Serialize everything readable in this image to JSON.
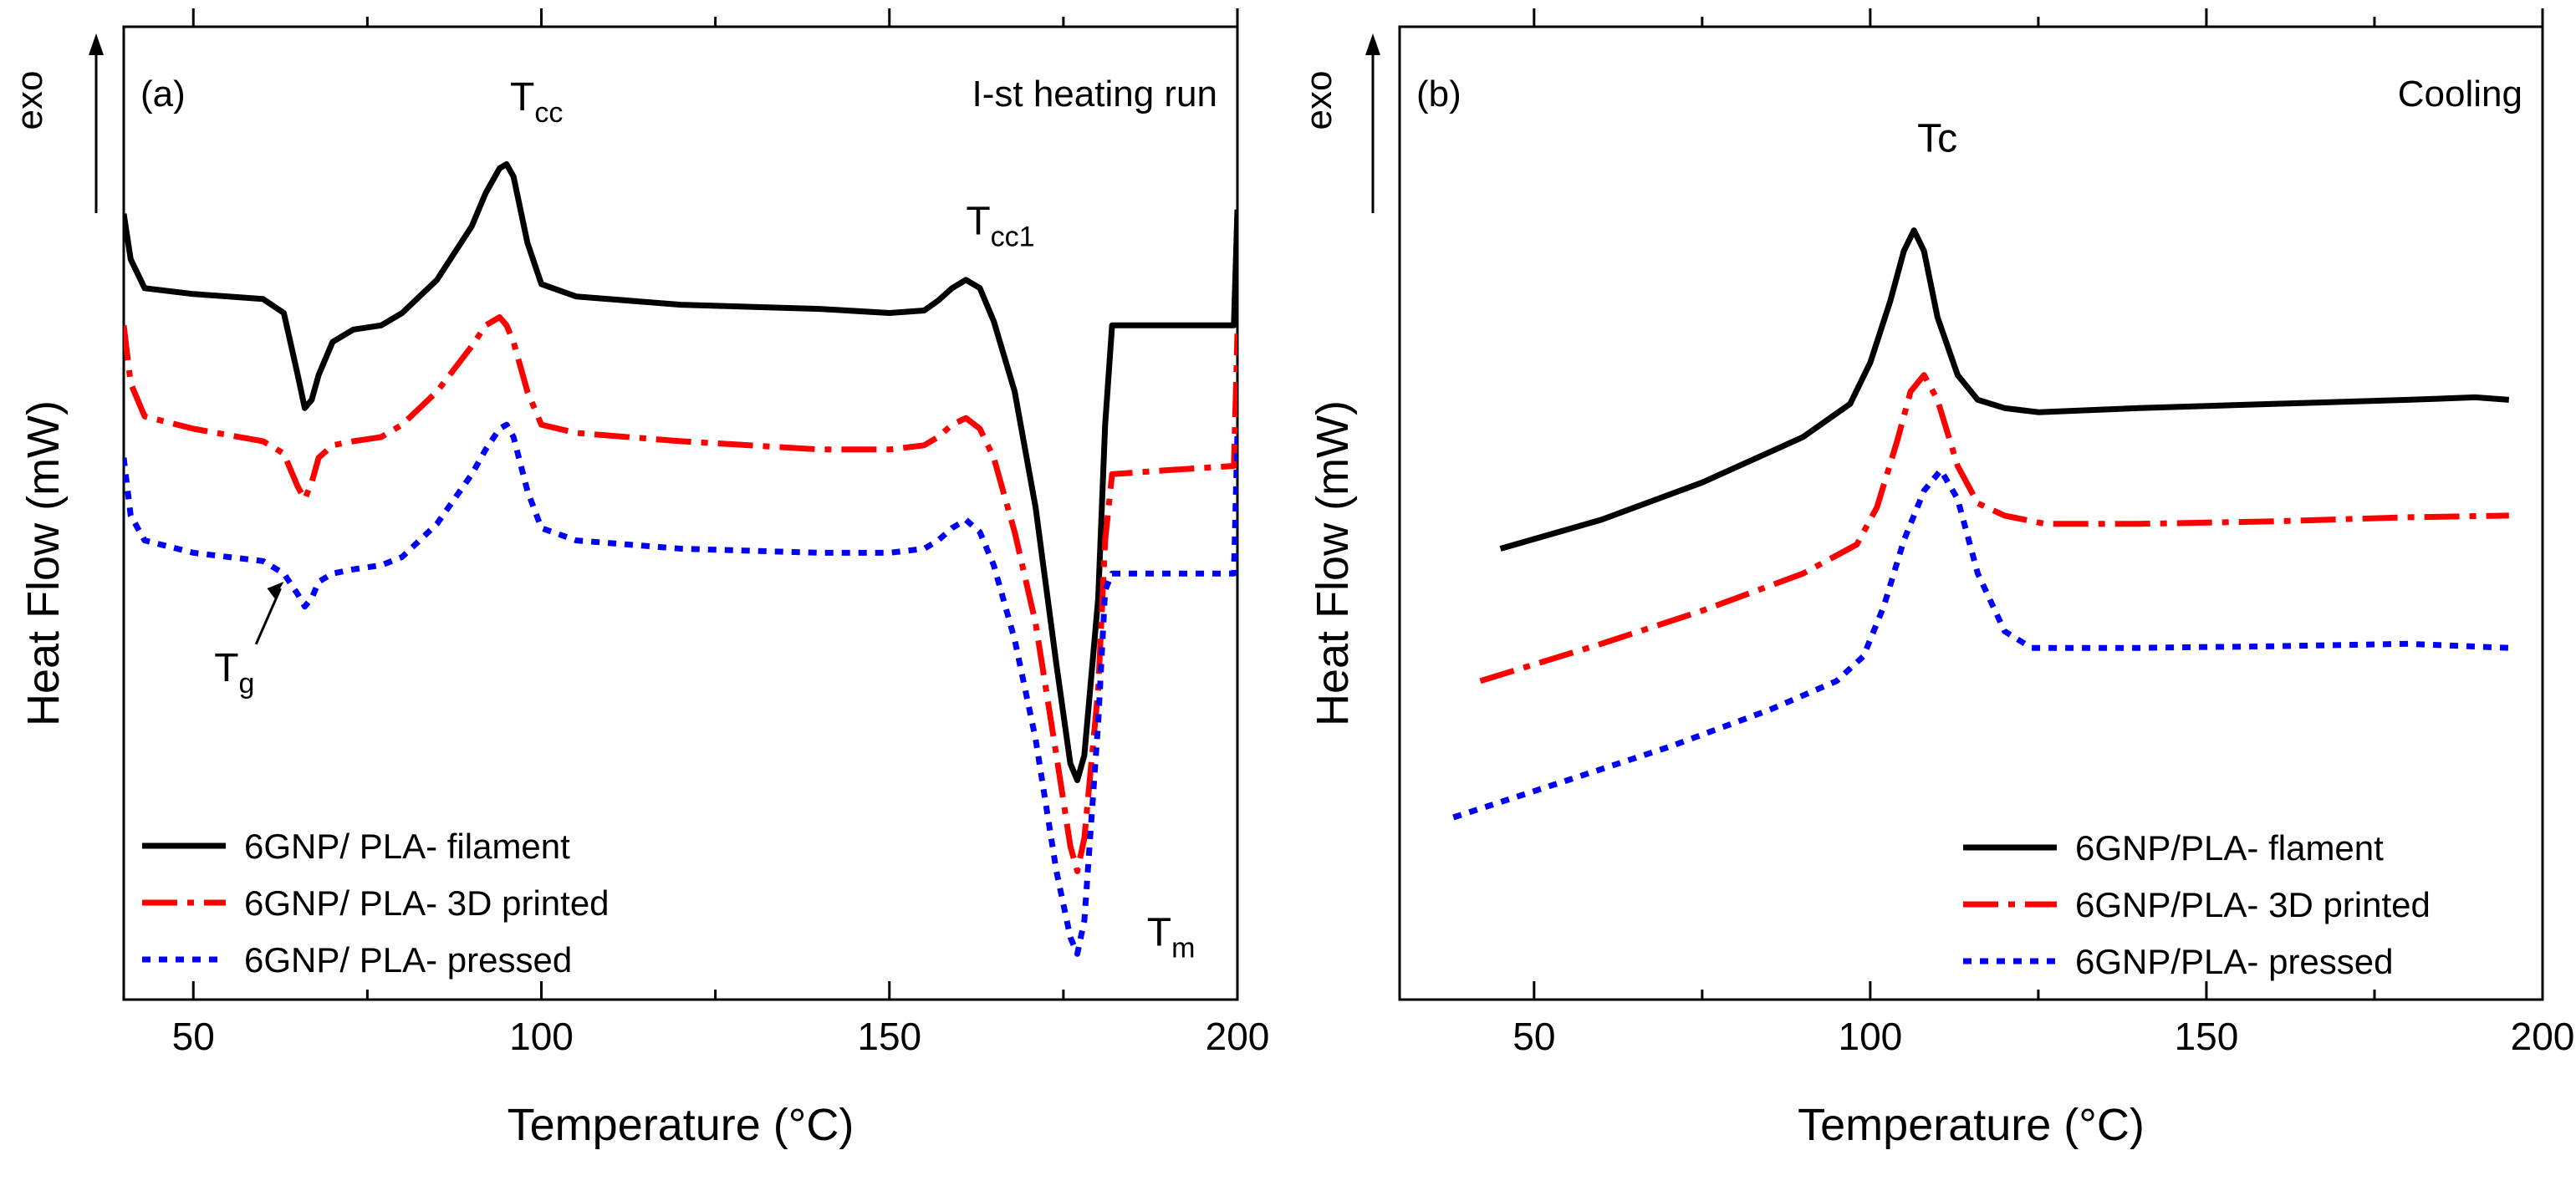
{
  "chart_data": [
    {
      "type": "line",
      "panel": "(a)",
      "title": "I-st heating run",
      "xlabel": "Temperature (°C)",
      "ylabel": "Heat Flow (mW)",
      "exo_label": "exo",
      "xlim": [
        40,
        200
      ],
      "ylim": [
        0,
        1
      ],
      "xticks": [
        50,
        100,
        150,
        200
      ],
      "x": [
        40,
        41,
        43,
        50,
        60,
        63,
        65,
        66,
        67,
        68,
        70,
        73,
        77,
        80,
        85,
        90,
        92,
        94,
        95,
        96,
        98,
        100,
        105,
        120,
        140,
        150,
        155,
        157,
        159,
        161,
        163,
        165,
        168,
        171,
        174,
        176,
        177,
        178,
        180,
        181,
        182,
        190,
        199.5,
        200
      ],
      "series": [
        {
          "name": "6GNP/ PLA- filament",
          "color": "#000000",
          "dash": "solid",
          "values": [
            0.915,
            0.86,
            0.825,
            0.818,
            0.812,
            0.795,
            0.72,
            0.68,
            0.69,
            0.72,
            0.76,
            0.775,
            0.78,
            0.795,
            0.835,
            0.9,
            0.94,
            0.97,
            0.975,
            0.96,
            0.88,
            0.83,
            0.815,
            0.805,
            0.8,
            0.795,
            0.798,
            0.81,
            0.825,
            0.835,
            0.825,
            0.785,
            0.7,
            0.56,
            0.37,
            0.25,
            0.23,
            0.26,
            0.45,
            0.66,
            0.78,
            0.78,
            0.78,
            0.92
          ]
        },
        {
          "name": "6GNP/ PLA- 3D printed",
          "color": "#ff0000",
          "dash": "dashdot",
          "values": [
            0.78,
            0.71,
            0.67,
            0.655,
            0.64,
            0.625,
            0.585,
            0.57,
            0.59,
            0.62,
            0.635,
            0.64,
            0.645,
            0.66,
            0.7,
            0.755,
            0.78,
            0.79,
            0.78,
            0.76,
            0.7,
            0.66,
            0.65,
            0.64,
            0.63,
            0.63,
            0.635,
            0.645,
            0.66,
            0.668,
            0.655,
            0.62,
            0.53,
            0.42,
            0.26,
            0.15,
            0.12,
            0.16,
            0.34,
            0.52,
            0.6,
            0.605,
            0.61,
            0.77
          ]
        },
        {
          "name": "6GNP/ PLA- pressed",
          "color": "#0000ff",
          "dash": "dot",
          "values": [
            0.62,
            0.55,
            0.52,
            0.505,
            0.495,
            0.48,
            0.455,
            0.44,
            0.45,
            0.47,
            0.48,
            0.485,
            0.49,
            0.5,
            0.54,
            0.6,
            0.63,
            0.655,
            0.66,
            0.645,
            0.58,
            0.535,
            0.52,
            0.51,
            0.505,
            0.505,
            0.51,
            0.52,
            0.535,
            0.545,
            0.53,
            0.49,
            0.4,
            0.28,
            0.12,
            0.04,
            0.02,
            0.06,
            0.3,
            0.46,
            0.48,
            0.48,
            0.48,
            0.65
          ]
        }
      ],
      "annotations": [
        {
          "main": "T",
          "sub": "cc",
          "x": 95.5,
          "y": 1.04
        },
        {
          "main": "T",
          "sub": "cc1",
          "x": 161,
          "y": 0.89
        },
        {
          "main": "T",
          "sub": "g",
          "x": 53,
          "y": 0.35
        },
        {
          "main": "T",
          "sub": "m",
          "x": 187,
          "y": 0.03
        }
      ]
    },
    {
      "type": "line",
      "panel": "(b)",
      "title": "Cooling",
      "xlabel": "Temperature (°C)",
      "ylabel": "Heat Flow (mW)",
      "exo_label": "exo",
      "xlim": [
        30,
        200
      ],
      "ylim": [
        0,
        1
      ],
      "xticks": [
        50,
        100,
        150,
        200
      ],
      "series": [
        {
          "name": "6GNP/PLA- flament",
          "color": "#000000",
          "dash": "solid",
          "x": [
            45,
            60,
            75,
            90,
            97,
            100,
            103,
            105,
            106.5,
            108,
            110,
            113,
            116,
            120,
            125,
            140,
            160,
            180,
            190,
            195
          ],
          "values": [
            0.51,
            0.545,
            0.59,
            0.645,
            0.685,
            0.735,
            0.81,
            0.87,
            0.895,
            0.87,
            0.79,
            0.72,
            0.69,
            0.68,
            0.675,
            0.68,
            0.685,
            0.69,
            0.693,
            0.69
          ]
        },
        {
          "name": "6GNP/PLA- 3D printed",
          "color": "#ff0000",
          "dash": "dashdot",
          "x": [
            42,
            60,
            75,
            90,
            98,
            101,
            104,
            106,
            108,
            110,
            113,
            116,
            120,
            126,
            140,
            160,
            180,
            195
          ],
          "values": [
            0.35,
            0.395,
            0.435,
            0.48,
            0.515,
            0.56,
            0.64,
            0.7,
            0.72,
            0.69,
            0.61,
            0.565,
            0.55,
            0.54,
            0.54,
            0.543,
            0.548,
            0.55
          ]
        },
        {
          "name": "6GNP/PLA- pressed",
          "color": "#0000ff",
          "dash": "dot",
          "x": [
            38,
            55,
            70,
            85,
            95,
            99,
            102,
            105,
            108,
            110.5,
            113,
            116,
            120,
            124,
            140,
            160,
            180,
            195
          ],
          "values": [
            0.185,
            0.23,
            0.27,
            0.315,
            0.35,
            0.38,
            0.44,
            0.52,
            0.58,
            0.605,
            0.57,
            0.48,
            0.41,
            0.39,
            0.39,
            0.392,
            0.395,
            0.39
          ]
        }
      ],
      "annotations": [
        {
          "main": "Tc",
          "sub": "",
          "x": 107,
          "y": 0.99
        }
      ]
    }
  ]
}
